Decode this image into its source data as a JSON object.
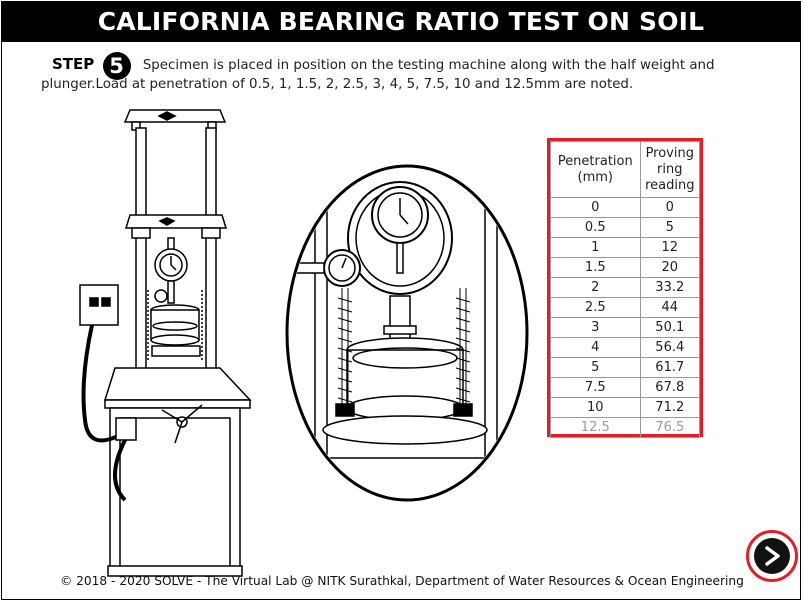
{
  "header": {
    "title": "CALIFORNIA BEARING RATIO TEST ON SOIL"
  },
  "step": {
    "label": "STEP",
    "number": "5",
    "description_line1": "Specimen is placed in position on the testing machine along with the half weight and",
    "description_line2": "plunger.Load at penetration of 0.5, 1, 1.5, 2, 2.5, 3, 4, 5, 7.5, 10 and 12.5mm are noted."
  },
  "table": {
    "header_penetration_line1": "Penetration",
    "header_penetration_line2": "(mm)",
    "header_reading_line1": "Proving",
    "header_reading_line2": "ring",
    "header_reading_line3": "reading",
    "rows": [
      {
        "penetration": "0",
        "reading": "0"
      },
      {
        "penetration": "0.5",
        "reading": "5"
      },
      {
        "penetration": "1",
        "reading": "12"
      },
      {
        "penetration": "1.5",
        "reading": "20"
      },
      {
        "penetration": "2",
        "reading": "33.2"
      },
      {
        "penetration": "2.5",
        "reading": "44"
      },
      {
        "penetration": "3",
        "reading": "50.1"
      },
      {
        "penetration": "4",
        "reading": "56.4"
      },
      {
        "penetration": "5",
        "reading": "61.7"
      },
      {
        "penetration": "7.5",
        "reading": "67.8"
      },
      {
        "penetration": "10",
        "reading": "71.2"
      },
      {
        "penetration": "12.5",
        "reading": "76.5"
      }
    ],
    "border_color": "#e41e26"
  },
  "footer": {
    "text": "© 2018 - 2020 SOLVE - The Virtual Lab @ NITK Surathkal, Department of Water Resources & Ocean Engineering"
  },
  "navigation": {
    "next_icon": "chevron-right-icon",
    "accent_color": "#e41e26"
  }
}
